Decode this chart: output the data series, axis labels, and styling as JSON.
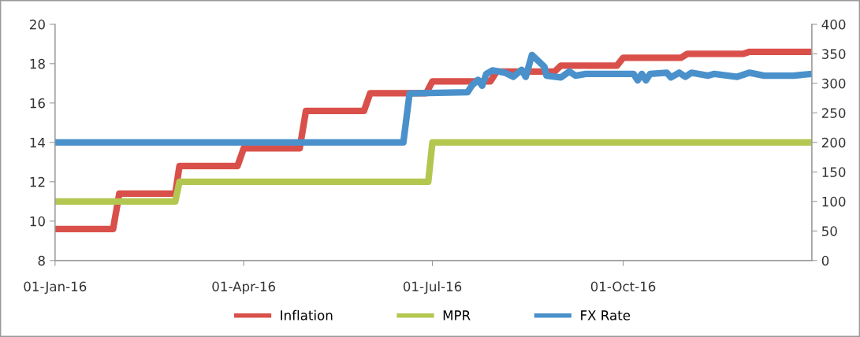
{
  "chart_data": {
    "type": "line",
    "xlim": [
      "2016-01-01",
      "2016-12-31"
    ],
    "xticks": [
      {
        "value": "2016-01-01",
        "label": "01-Jan-16"
      },
      {
        "value": "2016-04-01",
        "label": "01-Apr-16"
      },
      {
        "value": "2016-07-01",
        "label": "01-Jul-16"
      },
      {
        "value": "2016-10-01",
        "label": "01-Oct-16"
      }
    ],
    "ylim": [
      8,
      20
    ],
    "yticks": [
      8,
      10,
      12,
      14,
      16,
      18,
      20
    ],
    "y2lim": [
      0,
      400
    ],
    "y2ticks": [
      0,
      50,
      100,
      150,
      200,
      250,
      300,
      350,
      400
    ],
    "grid": false,
    "legend": "bottom",
    "marker": "none",
    "line_style": "solid",
    "series": [
      {
        "name": "Inflation",
        "color": "#d9504a",
        "x": [
          "2016-01-01",
          "2016-01-29",
          "2016-02-01",
          "2016-02-28",
          "2016-03-01",
          "2016-03-29",
          "2016-04-01",
          "2016-04-28",
          "2016-05-01",
          "2016-05-29",
          "2016-06-01",
          "2016-06-28",
          "2016-07-01",
          "2016-07-29",
          "2016-08-01",
          "2016-08-29",
          "2016-09-01",
          "2016-09-28",
          "2016-10-01",
          "2016-10-29",
          "2016-11-01",
          "2016-11-28",
          "2016-12-01",
          "2016-12-31"
        ],
        "values": [
          9.6,
          9.6,
          11.4,
          11.4,
          12.8,
          12.8,
          13.7,
          13.7,
          15.6,
          15.6,
          16.5,
          16.5,
          17.1,
          17.1,
          17.6,
          17.6,
          17.9,
          17.9,
          18.3,
          18.3,
          18.5,
          18.5,
          18.6,
          18.6
        ]
      },
      {
        "name": "MPR",
        "color": "#b3c650",
        "x": [
          "2016-01-01",
          "2016-02-28",
          "2016-03-01",
          "2016-06-29",
          "2016-07-01",
          "2016-12-31"
        ],
        "values": [
          11,
          11,
          12,
          12,
          14,
          14
        ]
      },
      {
        "name": "FX Rate",
        "color": "#4a91cb",
        "axis": "y2",
        "x": [
          "2016-01-01",
          "2016-06-17",
          "2016-06-20",
          "2016-07-18",
          "2016-07-20",
          "2016-07-23",
          "2016-07-25",
          "2016-07-27",
          "2016-07-30",
          "2016-08-05",
          "2016-08-09",
          "2016-08-13",
          "2016-08-15",
          "2016-08-18",
          "2016-08-24",
          "2016-08-25",
          "2016-09-01",
          "2016-09-05",
          "2016-09-08",
          "2016-09-13",
          "2016-10-06",
          "2016-10-08",
          "2016-10-10",
          "2016-10-12",
          "2016-10-14",
          "2016-10-22",
          "2016-10-24",
          "2016-10-28",
          "2016-10-31",
          "2016-11-03",
          "2016-11-11",
          "2016-11-14",
          "2016-11-25",
          "2016-12-01",
          "2016-12-08",
          "2016-12-22",
          "2016-12-31"
        ],
        "values": [
          200,
          200,
          283,
          285,
          296,
          306,
          296,
          316,
          322,
          318,
          311,
          323,
          311,
          348,
          328,
          313,
          310,
          320,
          313,
          316,
          316,
          305,
          316,
          305,
          316,
          318,
          310,
          318,
          311,
          318,
          313,
          316,
          311,
          318,
          313,
          313,
          316
        ]
      }
    ]
  }
}
